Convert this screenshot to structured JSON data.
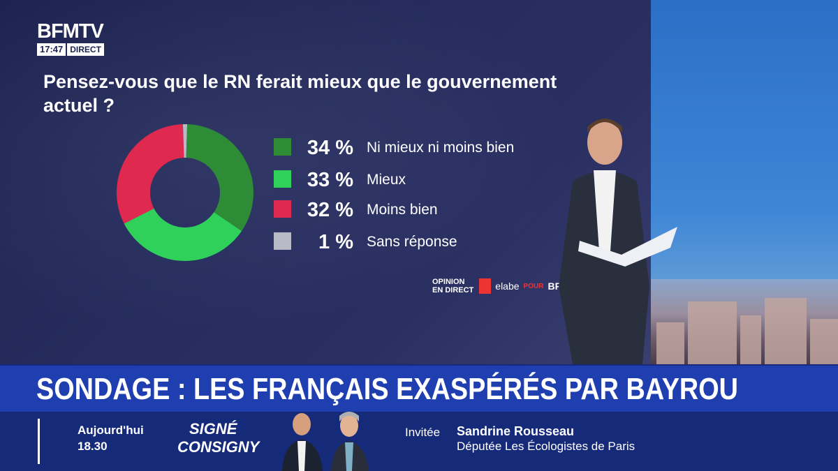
{
  "channel": {
    "logo_text": "BFMTV",
    "time": "17:47",
    "live_label": "DIRECT"
  },
  "colors": {
    "dark_green": "#2e8b36",
    "bright_green": "#2fd15a",
    "red": "#e0294f",
    "gray": "#b7b9c6",
    "headline_blue": "#1f3fb0"
  },
  "chart_data": {
    "type": "pie",
    "style": "donut",
    "title": "Pensez-vous que le RN ferait mieux que le gouvernement actuel ?",
    "slices": [
      {
        "label": "Ni mieux ni moins bien",
        "value": 34,
        "display": "34 %",
        "color": "#2e8b36"
      },
      {
        "label": "Mieux",
        "value": 33,
        "display": "33 %",
        "color": "#2fd15a"
      },
      {
        "label": "Moins bien",
        "value": 32,
        "display": "32 %",
        "color": "#e0294f"
      },
      {
        "label": "Sans réponse",
        "value": 1,
        "display": "1 %",
        "color": "#b7b9c6"
      }
    ]
  },
  "credit": {
    "opinion_line1": "OPINION",
    "opinion_line2": "EN DIRECT",
    "elabe": "elabe",
    "pour": "POUR",
    "bfm": "BFM"
  },
  "headline": "SONDAGE : LES FRANÇAIS EXASPÉRÉS PAR BAYROU",
  "ticker": {
    "day": "Aujourd'hui",
    "time": "18.30",
    "show_line1": "SIGNÉ",
    "show_line2": "CONSIGNY",
    "invite_label": "Invitée",
    "guest_name": "Sandrine Rousseau",
    "guest_role": "Députée Les Écologistes de Paris"
  }
}
